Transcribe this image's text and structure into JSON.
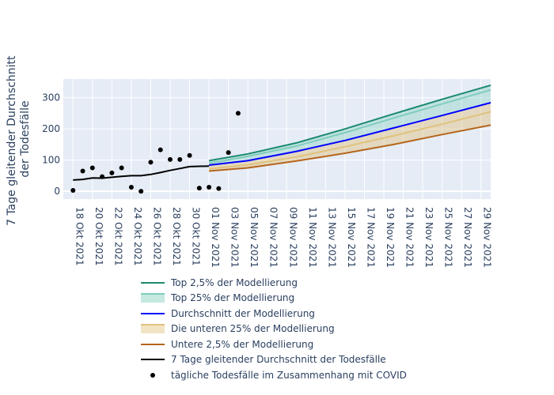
{
  "chart_data": {
    "type": "line",
    "xlabel": "",
    "ylabel": "7 Tage gleitender Durchschnitt der Todesfälle",
    "ylabel_lines": [
      "7 Tage gleitender Durchschnitt",
      "der Todesfälle"
    ],
    "x_start": "2021-10-17",
    "x_end": "2021-11-30",
    "x_ticks": [
      "18 Okt 2021",
      "20 Okt 2021",
      "22 Okt 2021",
      "24 Okt 2021",
      "26 Okt 2021",
      "28 Okt 2021",
      "30 Okt 2021",
      "01 Nov 2021",
      "03 Nov 2021",
      "05 Nov 2021",
      "07 Nov 2021",
      "09 Nov 2021",
      "11 Nov 2021",
      "13 Nov 2021",
      "15 Nov 2021",
      "17 Nov 2021",
      "19 Nov 2021",
      "21 Nov 2021",
      "23 Nov 2021",
      "25 Nov 2021",
      "27 Nov 2021",
      "29 Nov 2021"
    ],
    "y_ticks": [
      0,
      100,
      200,
      300
    ],
    "ylim": [
      -25,
      360
    ],
    "grid": true,
    "legend_position": "bottom",
    "series": [
      {
        "name": "Top 2,5% der Modellierung",
        "kind": "line",
        "color": "#1a8a6f",
        "dates": [
          "2021-11-01",
          "2021-11-05",
          "2021-11-10",
          "2021-11-15",
          "2021-11-20",
          "2021-11-25",
          "2021-11-30"
        ],
        "values": [
          98,
          120,
          155,
          200,
          248,
          295,
          340
        ]
      },
      {
        "name": "Top 25% der Modellierung",
        "kind": "band",
        "color": "#7fcdbb",
        "dates": [
          "2021-11-01",
          "2021-11-05",
          "2021-11-10",
          "2021-11-15",
          "2021-11-20",
          "2021-11-25",
          "2021-11-30"
        ],
        "values": [
          90,
          112,
          145,
          188,
          235,
          280,
          325
        ]
      },
      {
        "name": "Durchschnitt der Modellierung",
        "kind": "line",
        "color": "#0000ff",
        "dates": [
          "2021-11-01",
          "2021-11-05",
          "2021-11-10",
          "2021-11-15",
          "2021-11-20",
          "2021-11-25",
          "2021-11-30"
        ],
        "values": [
          84,
          98,
          128,
          163,
          203,
          243,
          284
        ]
      },
      {
        "name": "Die unteren 25% der Modellierung",
        "kind": "band",
        "color": "#dfc27d",
        "dates": [
          "2021-11-01",
          "2021-11-05",
          "2021-11-10",
          "2021-11-15",
          "2021-11-20",
          "2021-11-25",
          "2021-11-30"
        ],
        "values": [
          72,
          85,
          110,
          143,
          178,
          215,
          255
        ]
      },
      {
        "name": "Untere 2,5% der Modellierung",
        "kind": "line",
        "color": "#b5651d",
        "dates": [
          "2021-11-01",
          "2021-11-05",
          "2021-11-10",
          "2021-11-15",
          "2021-11-20",
          "2021-11-25",
          "2021-11-30"
        ],
        "values": [
          65,
          75,
          97,
          122,
          150,
          182,
          212
        ]
      },
      {
        "name": "7 Tage gleitender Durchschnitt der Todesfälle",
        "kind": "line",
        "color": "#000000",
        "dates": [
          "2021-10-18",
          "2021-10-19",
          "2021-10-20",
          "2021-10-21",
          "2021-10-22",
          "2021-10-23",
          "2021-10-24",
          "2021-10-25",
          "2021-10-26",
          "2021-10-27",
          "2021-10-28",
          "2021-10-29",
          "2021-10-30",
          "2021-10-31",
          "2021-11-01"
        ],
        "values": [
          36,
          38,
          43,
          42,
          45,
          48,
          50,
          50,
          54,
          60,
          67,
          73,
          79,
          80,
          81
        ]
      },
      {
        "name": "tägliche Todesfälle im Zusammenhang mit COVID",
        "kind": "markers",
        "color": "#000000",
        "dates": [
          "2021-10-18",
          "2021-10-19",
          "2021-10-20",
          "2021-10-21",
          "2021-10-22",
          "2021-10-23",
          "2021-10-24",
          "2021-10-25",
          "2021-10-26",
          "2021-10-27",
          "2021-10-28",
          "2021-10-29",
          "2021-10-30",
          "2021-10-31",
          "2021-11-01",
          "2021-11-02",
          "2021-11-03",
          "2021-11-04"
        ],
        "values": [
          3,
          65,
          75,
          47,
          59,
          75,
          13,
          0,
          93,
          133,
          102,
          102,
          115,
          10,
          13,
          9,
          124,
          250
        ]
      }
    ]
  }
}
